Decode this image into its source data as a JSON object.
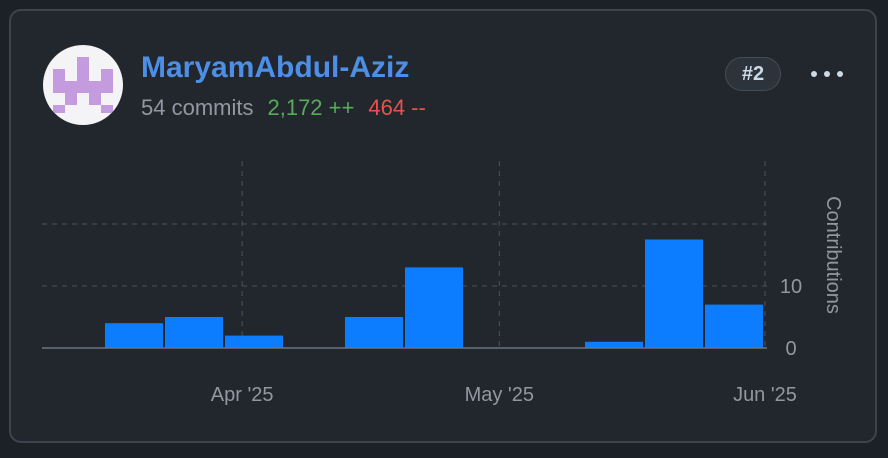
{
  "contributor": {
    "username": "MaryamAbdul-Aziz",
    "commits": "54 commits",
    "additions": "2,172 ++",
    "deletions": "464 --",
    "rank": "#2"
  },
  "colors": {
    "bar": "#0d7dff",
    "username": "#4d8fe6",
    "additions": "#57ab5a",
    "deletions": "#e5534b"
  },
  "chart_data": {
    "type": "bar",
    "ylabel": "Contributions",
    "y_ticks": [
      0,
      10
    ],
    "ylim": [
      0,
      20
    ],
    "x_ticks": [
      "Apr '25",
      "May '25",
      "Jun '25"
    ],
    "bars": [
      {
        "week": "Mar 16 '25",
        "value": 4
      },
      {
        "week": "Mar 23 '25",
        "value": 5
      },
      {
        "week": "Mar 30 '25",
        "value": 2
      },
      {
        "week": "Apr 13 '25",
        "value": 5
      },
      {
        "week": "Apr 20 '25",
        "value": 13
      },
      {
        "week": "May 11 '25",
        "value": 1
      },
      {
        "week": "May 18 '25",
        "value": 17.5
      },
      {
        "week": "May 25 '25",
        "value": 7
      }
    ],
    "grid": true
  }
}
